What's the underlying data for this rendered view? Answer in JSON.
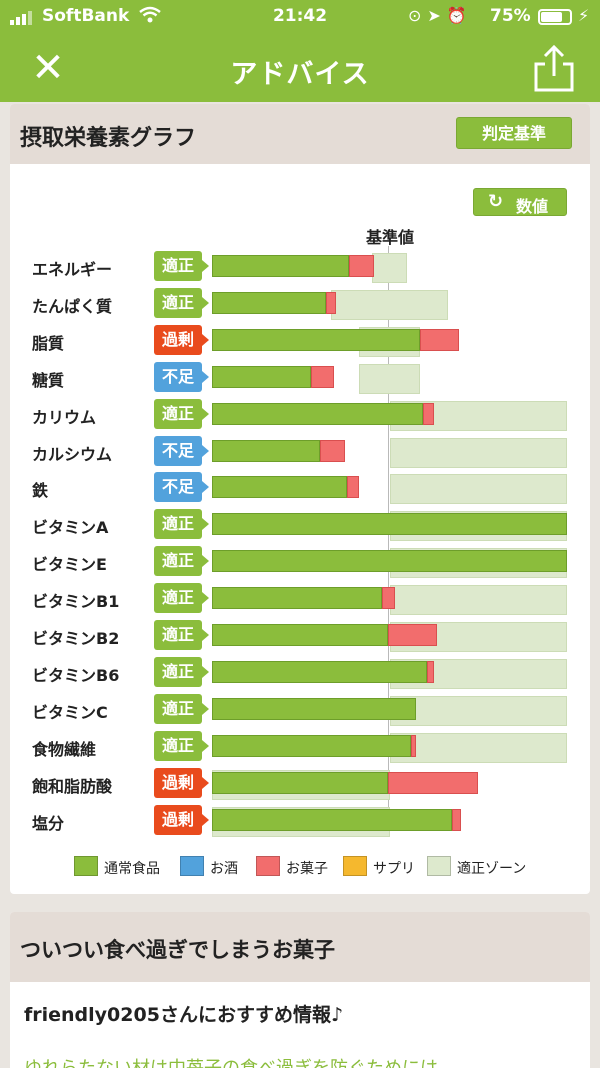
{
  "status_bar": {
    "carrier": "SoftBank",
    "time": "21:42",
    "battery_text": "75%",
    "battery_level": 0.75
  },
  "nav": {
    "title": "アドバイス"
  },
  "graph_card": {
    "title": "摂取栄養素グラフ",
    "criteria_button": "判定基準",
    "value_button": "数値",
    "reference_label": "基準値",
    "scale_max": 2.0,
    "rows": [
      {
        "name": "エネルギー",
        "status": "適正",
        "level": "ok",
        "food": 0.77,
        "snack": 0.14,
        "zone": [
          0.9,
          1.1
        ]
      },
      {
        "name": "たんぱく質",
        "status": "適正",
        "level": "ok",
        "food": 0.64,
        "snack": 0.06,
        "zone": [
          0.67,
          1.33
        ]
      },
      {
        "name": "脂質",
        "status": "過剰",
        "level": "over",
        "food": 1.17,
        "snack": 0.22,
        "zone": [
          0.83,
          1.17
        ]
      },
      {
        "name": "糖質",
        "status": "不足",
        "level": "under",
        "food": 0.56,
        "snack": 0.13,
        "zone": [
          0.83,
          1.17
        ]
      },
      {
        "name": "カリウム",
        "status": "適正",
        "level": "ok",
        "food": 1.19,
        "snack": 0.06,
        "zone": [
          1.0,
          2.0
        ]
      },
      {
        "name": "カルシウム",
        "status": "不足",
        "level": "under",
        "food": 0.61,
        "snack": 0.14,
        "zone": [
          1.0,
          2.0
        ]
      },
      {
        "name": "鉄",
        "status": "不足",
        "level": "under",
        "food": 0.76,
        "snack": 0.07,
        "zone": [
          1.0,
          2.0
        ]
      },
      {
        "name": "ビタミンA",
        "status": "適正",
        "level": "ok",
        "food": 2.0,
        "snack": 0,
        "zone": [
          1.0,
          2.0
        ]
      },
      {
        "name": "ビタミンE",
        "status": "適正",
        "level": "ok",
        "food": 2.0,
        "snack": 0,
        "zone": [
          1.0,
          2.0
        ]
      },
      {
        "name": "ビタミンB1",
        "status": "適正",
        "level": "ok",
        "food": 0.96,
        "snack": 0.07,
        "zone": [
          1.0,
          2.0
        ]
      },
      {
        "name": "ビタミンB2",
        "status": "適正",
        "level": "ok",
        "food": 0.99,
        "snack": 0.28,
        "zone": [
          1.0,
          2.0
        ]
      },
      {
        "name": "ビタミンB6",
        "status": "適正",
        "level": "ok",
        "food": 1.21,
        "snack": 0.04,
        "zone": [
          1.0,
          2.0
        ]
      },
      {
        "name": "ビタミンC",
        "status": "適正",
        "level": "ok",
        "food": 1.15,
        "snack": 0,
        "zone": [
          1.0,
          2.0
        ]
      },
      {
        "name": "食物繊維",
        "status": "適正",
        "level": "ok",
        "food": 1.12,
        "snack": 0.03,
        "zone": [
          1.0,
          2.0
        ]
      },
      {
        "name": "飽和脂肪酸",
        "status": "過剰",
        "level": "over",
        "food": 0.99,
        "snack": 0.51,
        "zone": [
          0,
          1.0
        ]
      },
      {
        "name": "塩分",
        "status": "過剰",
        "level": "over",
        "food": 1.35,
        "snack": 0.05,
        "zone": [
          0,
          1.0
        ]
      }
    ],
    "legend": [
      {
        "label": "通常食品",
        "color": "#8bbd3c"
      },
      {
        "label": "お酒",
        "color": "#52a2dc"
      },
      {
        "label": "お菓子",
        "color": "#f26d6d"
      },
      {
        "label": "サプリ",
        "color": "#f5b82e"
      },
      {
        "label": "適正ゾーン",
        "color": "#dde9cd"
      }
    ]
  },
  "snack_card": {
    "title": "ついつい食べ過ぎでしまうお菓子",
    "subtitle": "friendly0205さんにおすすめ情報♪",
    "link_text": "ゆれらたない材は中苺子の食べ過ぎを防ぐためには"
  }
}
